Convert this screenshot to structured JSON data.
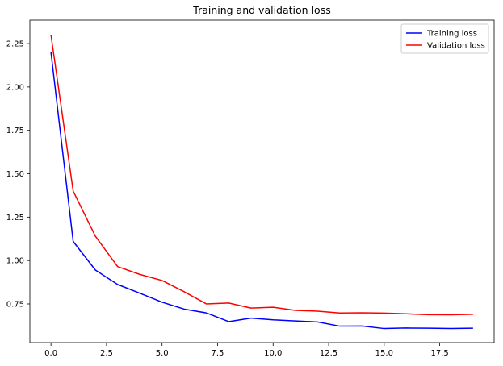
{
  "chart_data": {
    "type": "line",
    "title": "Training and validation loss",
    "xlabel": "",
    "ylabel": "",
    "xlim": [
      -0.95,
      19.95
    ],
    "ylim": [
      0.527,
      2.385
    ],
    "x_ticks": [
      0,
      2.5,
      5,
      7.5,
      10,
      12.5,
      15,
      17.5
    ],
    "x_tick_labels": [
      "0.0",
      "2.5",
      "5.0",
      "7.5",
      "10.0",
      "12.5",
      "15.0",
      "17.5"
    ],
    "y_ticks": [
      0.75,
      1.0,
      1.25,
      1.5,
      1.75,
      2.0,
      2.25
    ],
    "y_tick_labels": [
      "0.75",
      "1.00",
      "1.25",
      "1.50",
      "1.75",
      "2.00",
      "2.25"
    ],
    "grid": false,
    "legend_position": "top-right",
    "x": [
      0,
      1,
      2,
      3,
      4,
      5,
      6,
      7,
      8,
      9,
      10,
      11,
      12,
      13,
      14,
      15,
      16,
      17,
      18,
      19
    ],
    "series": [
      {
        "name": "Training loss",
        "color": "#0000ff",
        "values": [
          2.2,
          1.11,
          0.945,
          0.862,
          0.812,
          0.76,
          0.72,
          0.698,
          0.648,
          0.668,
          0.658,
          0.652,
          0.646,
          0.622,
          0.623,
          0.608,
          0.611,
          0.61,
          0.608,
          0.61
        ]
      },
      {
        "name": "Validation loss",
        "color": "#ff0000",
        "values": [
          2.3,
          1.4,
          1.14,
          0.965,
          0.92,
          0.885,
          0.82,
          0.75,
          0.755,
          0.726,
          0.731,
          0.713,
          0.708,
          0.698,
          0.699,
          0.697,
          0.693,
          0.688,
          0.687,
          0.69
        ]
      }
    ]
  }
}
